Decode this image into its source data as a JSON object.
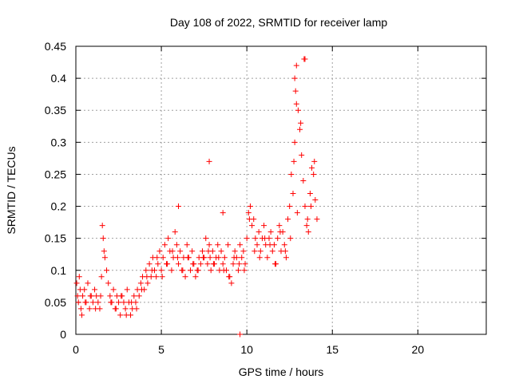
{
  "chart_data": {
    "type": "scatter",
    "title": "Day 108 of 2022, SRMTID for receiver lamp",
    "xlabel": "GPS time / hours",
    "ylabel": "SRMTID / TECUs",
    "xlim": [
      0,
      24
    ],
    "ylim": [
      0,
      0.45
    ],
    "x_ticks": [
      0,
      5,
      10,
      15,
      20
    ],
    "y_ticks": [
      0,
      0.05,
      0.1,
      0.15,
      0.2,
      0.25,
      0.3,
      0.35,
      0.4,
      0.45
    ],
    "x_tick_labels": [
      "0",
      "5",
      "10",
      "15",
      "20"
    ],
    "y_tick_labels": [
      "0",
      "0.05",
      "0.1",
      "0.15",
      "0.2",
      "0.25",
      "0.3",
      "0.35",
      "0.4",
      "0.45"
    ],
    "grid": true,
    "marker": "+",
    "color": "#ff0000",
    "series": [
      {
        "name": "SRMTID",
        "x": [
          0.05,
          0.1,
          0.15,
          0.2,
          0.3,
          0.35,
          0.4,
          0.5,
          0.6,
          0.7,
          0.8,
          0.9,
          1.0,
          1.1,
          1.2,
          1.3,
          1.4,
          1.5,
          1.55,
          1.6,
          1.65,
          1.7,
          1.8,
          1.9,
          2.0,
          2.1,
          2.2,
          2.3,
          2.4,
          2.5,
          2.6,
          2.7,
          2.8,
          2.9,
          3.0,
          3.1,
          3.2,
          3.3,
          3.4,
          3.5,
          3.6,
          3.7,
          3.8,
          3.9,
          4.0,
          4.1,
          4.2,
          4.3,
          4.4,
          4.5,
          4.6,
          4.7,
          4.8,
          4.9,
          5.0,
          5.1,
          5.2,
          5.3,
          5.4,
          5.5,
          5.6,
          5.7,
          5.8,
          5.9,
          6.0,
          6.1,
          6.2,
          6.3,
          6.4,
          6.5,
          6.6,
          6.7,
          6.8,
          6.9,
          7.0,
          7.1,
          7.2,
          7.3,
          7.4,
          7.5,
          7.6,
          7.7,
          7.8,
          7.85,
          7.9,
          8.0,
          8.1,
          8.2,
          8.3,
          8.4,
          8.5,
          8.6,
          8.7,
          8.8,
          8.9,
          9.0,
          9.1,
          9.2,
          9.3,
          9.4,
          9.5,
          9.6,
          9.7,
          9.8,
          9.9,
          10.0,
          10.1,
          10.2,
          10.3,
          10.4,
          10.5,
          10.6,
          10.7,
          10.8,
          10.9,
          11.0,
          11.1,
          11.2,
          11.3,
          11.4,
          11.5,
          11.6,
          11.7,
          11.8,
          11.9,
          12.0,
          12.1,
          12.2,
          12.3,
          12.4,
          12.5,
          12.6,
          12.7,
          12.75,
          12.8,
          12.85,
          12.9,
          13.0,
          13.1,
          13.2,
          13.3,
          13.4,
          13.5,
          13.6,
          13.7,
          13.8,
          13.9,
          14.0,
          14.1,
          0.25,
          0.55,
          0.85,
          1.15,
          1.45,
          2.05,
          2.35,
          2.65,
          2.95,
          3.25,
          3.55,
          3.85,
          4.15,
          4.45,
          4.75,
          5.05,
          5.35,
          5.65,
          5.95,
          6.25,
          6.55,
          6.85,
          7.15,
          7.45,
          7.75,
          8.05,
          8.35,
          8.65,
          8.95,
          9.25,
          9.55,
          9.85,
          10.15,
          10.45,
          10.75,
          11.05,
          11.35,
          11.65,
          11.95,
          12.25,
          12.55,
          12.95,
          13.15,
          13.35,
          13.55,
          13.75,
          13.95,
          7.8,
          6.0,
          8.6,
          9.6,
          12.8,
          12.9,
          13.4
        ],
        "y": [
          0.08,
          0.06,
          0.05,
          0.09,
          0.04,
          0.03,
          0.06,
          0.07,
          0.05,
          0.08,
          0.04,
          0.06,
          0.05,
          0.07,
          0.06,
          0.05,
          0.04,
          0.09,
          0.17,
          0.15,
          0.13,
          0.12,
          0.1,
          0.08,
          0.06,
          0.05,
          0.07,
          0.04,
          0.06,
          0.05,
          0.03,
          0.06,
          0.05,
          0.04,
          0.07,
          0.05,
          0.03,
          0.04,
          0.06,
          0.05,
          0.07,
          0.06,
          0.08,
          0.09,
          0.07,
          0.1,
          0.08,
          0.11,
          0.09,
          0.12,
          0.1,
          0.09,
          0.11,
          0.13,
          0.1,
          0.12,
          0.14,
          0.11,
          0.15,
          0.13,
          0.1,
          0.12,
          0.16,
          0.14,
          0.11,
          0.13,
          0.1,
          0.12,
          0.09,
          0.14,
          0.12,
          0.1,
          0.13,
          0.11,
          0.09,
          0.1,
          0.12,
          0.11,
          0.13,
          0.12,
          0.15,
          0.11,
          0.14,
          0.12,
          0.1,
          0.13,
          0.11,
          0.12,
          0.14,
          0.1,
          0.13,
          0.11,
          0.12,
          0.1,
          0.14,
          0.09,
          0.08,
          0.11,
          0.13,
          0.12,
          0.1,
          0.14,
          0.12,
          0.13,
          0.11,
          0.15,
          0.19,
          0.2,
          0.17,
          0.18,
          0.15,
          0.14,
          0.16,
          0.13,
          0.15,
          0.17,
          0.14,
          0.12,
          0.15,
          0.16,
          0.13,
          0.14,
          0.11,
          0.15,
          0.17,
          0.13,
          0.16,
          0.14,
          0.12,
          0.18,
          0.2,
          0.25,
          0.22,
          0.27,
          0.3,
          0.38,
          0.42,
          0.35,
          0.32,
          0.28,
          0.24,
          0.2,
          0.17,
          0.16,
          0.22,
          0.26,
          0.25,
          0.21,
          0.18,
          0.07,
          0.05,
          0.06,
          0.04,
          0.06,
          0.05,
          0.04,
          0.06,
          0.03,
          0.05,
          0.04,
          0.07,
          0.09,
          0.1,
          0.12,
          0.09,
          0.11,
          0.13,
          0.12,
          0.1,
          0.12,
          0.11,
          0.1,
          0.12,
          0.13,
          0.11,
          0.12,
          0.1,
          0.09,
          0.12,
          0.11,
          0.1,
          0.18,
          0.13,
          0.12,
          0.15,
          0.14,
          0.11,
          0.16,
          0.13,
          0.15,
          0.19,
          0.33,
          0.43,
          0.18,
          0.2,
          0.27,
          0.27,
          0.2,
          0.19,
          0.0,
          0.4,
          0.36,
          0.43
        ]
      }
    ]
  }
}
